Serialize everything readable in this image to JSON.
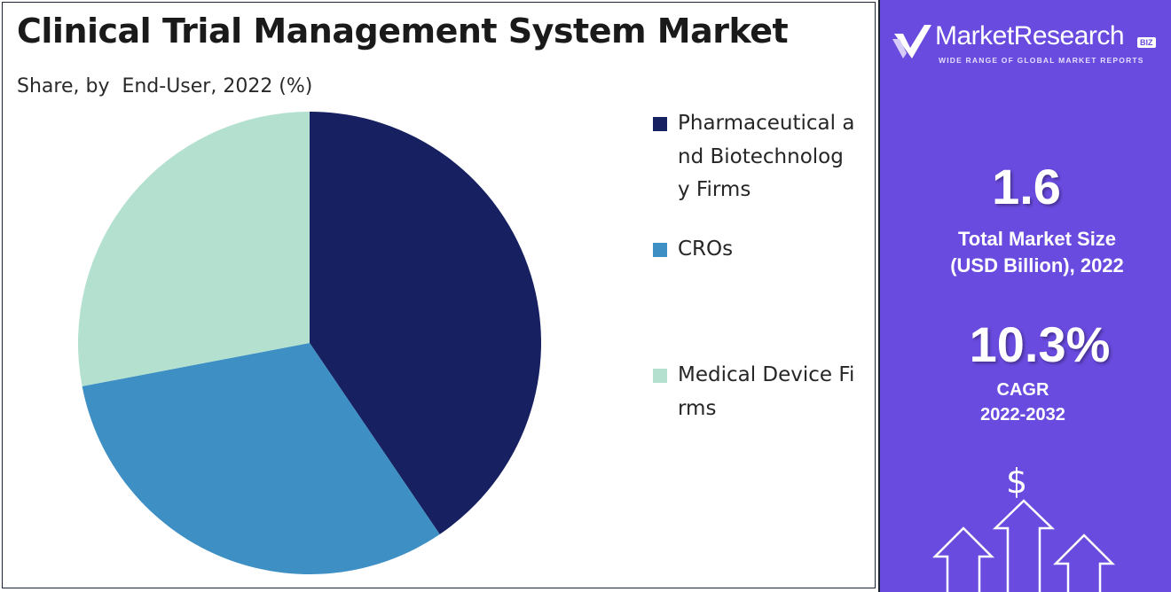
{
  "chart": {
    "title": "Clinical Trial Management System Market",
    "subtitle": "Share, by  End-User, 2022 (%)"
  },
  "chart_data": {
    "type": "pie",
    "title": "Clinical Trial Management System Market",
    "subtitle": "Share, by  End-User, 2022 (%)",
    "categories": [
      "Pharmaceutical and Biotechnology Firms",
      "CROs",
      "Medical Device Firms"
    ],
    "values": [
      40.5,
      31.5,
      28.0
    ],
    "colors": [
      "#172060",
      "#3d8fc4",
      "#b3e0cf"
    ],
    "legend_position": "right"
  },
  "legend": {
    "items": [
      {
        "label": "Pharmaceutical and Biotechnology Firms",
        "color": "#172060"
      },
      {
        "label": "CROs",
        "color": "#3d8fc4"
      },
      {
        "label": "Medical Device Firms",
        "color": "#b3e0cf"
      }
    ]
  },
  "sidebar": {
    "brand_name": "MarketResearch",
    "brand_badge": "BIZ",
    "tagline": "WIDE RANGE OF GLOBAL MARKET REPORTS",
    "market_size_value": "1.6",
    "market_size_label_line1": "Total Market Size",
    "market_size_label_line2": "(USD Billion), 2022",
    "cagr_value": "10.3%",
    "cagr_label": "CAGR",
    "cagr_period": "2022-2032",
    "dollar_symbol": "$",
    "background_color": "#6a4bdf"
  }
}
